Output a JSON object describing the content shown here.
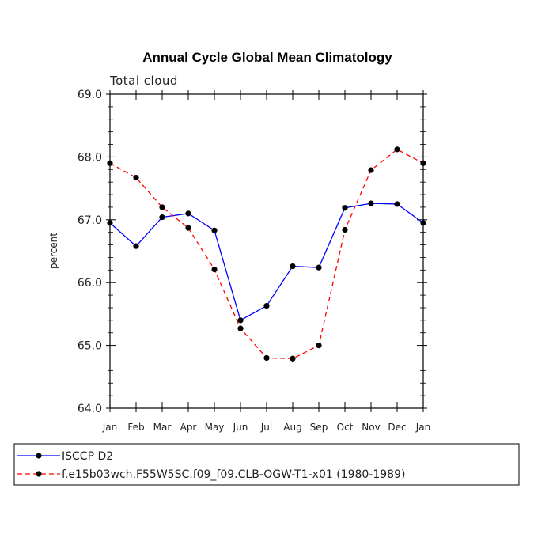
{
  "chart_data": {
    "type": "line",
    "title": "Annual Cycle Global Mean Climatology",
    "subtitle": "Total cloud",
    "xlabel": "",
    "ylabel": "percent",
    "categories": [
      "Jan",
      "Feb",
      "Mar",
      "Apr",
      "May",
      "Jun",
      "Jul",
      "Aug",
      "Sep",
      "Oct",
      "Nov",
      "Dec",
      "Jan"
    ],
    "ylim": [
      64.0,
      69.0
    ],
    "yticks": [
      "64.0",
      "65.0",
      "66.0",
      "67.0",
      "68.0",
      "69.0"
    ],
    "legend_position": "bottom",
    "series": [
      {
        "name": "ISCCP D2",
        "color": "#0000ff",
        "dash": "solid",
        "values": [
          66.95,
          66.58,
          67.04,
          67.1,
          66.83,
          65.4,
          65.63,
          66.26,
          66.24,
          67.19,
          67.26,
          67.25,
          66.95
        ]
      },
      {
        "name": "f.e15b03wch.F55W5SC.f09_f09.CLB-OGW-T1-x01 (1980-1989)",
        "color": "#ff0000",
        "dash": "dashed",
        "values": [
          67.9,
          67.67,
          67.2,
          66.87,
          66.21,
          65.27,
          64.8,
          64.79,
          65.0,
          66.84,
          67.79,
          68.12,
          67.9
        ]
      }
    ]
  }
}
